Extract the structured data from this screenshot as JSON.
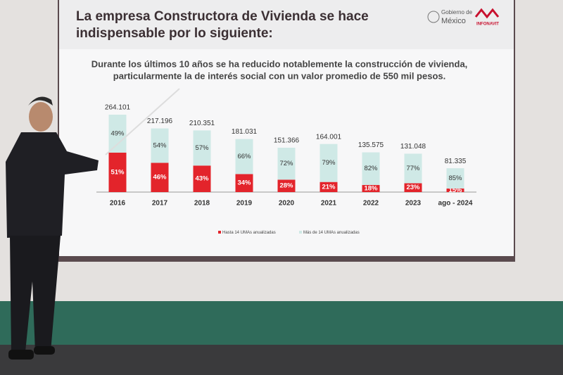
{
  "chart_data": {
    "type": "bar",
    "title": [
      "La empresa Constructora de Vivienda se hace",
      "indispensable por lo siguiente:"
    ],
    "subtitle": [
      "Durante los últimos 10 años se ha reducido notablemente la construcción de vivienda,",
      "particularmente la de interés social con un valor promedio de 550 mil pesos."
    ],
    "logos": [
      "Gobierno de",
      "México",
      "INFONAVIT"
    ],
    "categories": [
      "2016",
      "2017",
      "2018",
      "2019",
      "2020",
      "2021",
      "2022",
      "2023",
      "ago - 2024"
    ],
    "totals": [
      264.101,
      217.196,
      210.351,
      181.031,
      151.366,
      164.001,
      135.575,
      131.048,
      81.335
    ],
    "series": [
      {
        "name": "Hasta 14 UMAs anualizadas",
        "color": "#e3242b",
        "values": [
          51,
          46,
          43,
          34,
          28,
          21,
          18,
          23,
          15
        ],
        "value_labels": [
          "51%",
          "46%",
          "43%",
          "34%",
          "28%",
          "21%",
          "18%",
          "23%",
          "15%"
        ]
      },
      {
        "name": "Más de 14 UMAs anualizadas",
        "color": "#cfe9e6",
        "values": [
          49,
          54,
          57,
          66,
          72,
          79,
          82,
          77,
          85
        ],
        "value_labels": [
          "49%",
          "54%",
          "57%",
          "66%",
          "72%",
          "79%",
          "82%",
          "77%",
          "85%"
        ]
      }
    ]
  }
}
